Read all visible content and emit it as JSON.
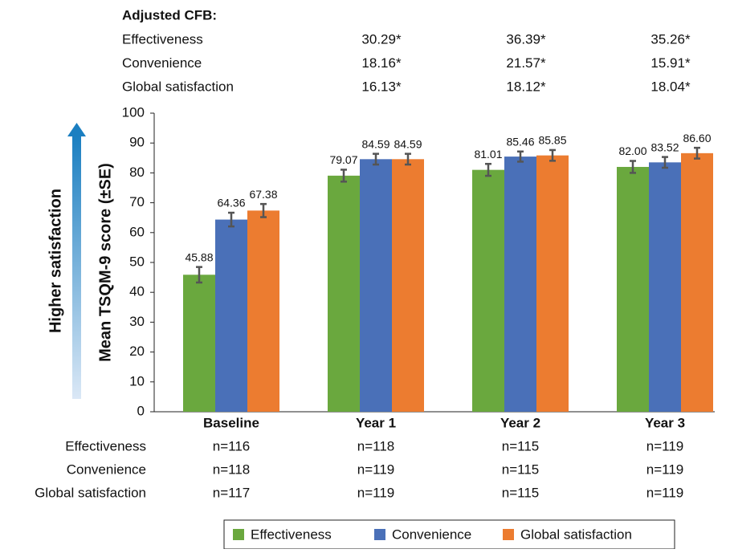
{
  "chart_data": {
    "type": "bar",
    "cfb": {
      "title": "Adjusted CFB:",
      "rows": [
        {
          "label": "Effectiveness",
          "values": [
            "30.29*",
            "36.39*",
            "35.26*"
          ]
        },
        {
          "label": "Convenience",
          "values": [
            "18.16*",
            "21.57*",
            "15.91*"
          ]
        },
        {
          "label": "Global satisfaction",
          "values": [
            "16.13*",
            "18.12*",
            "18.04*"
          ]
        }
      ]
    },
    "annotation": "Higher satisfaction",
    "y_label": "Mean TSQM-9 score (±SE)",
    "categories": [
      "Baseline",
      "Year 1",
      "Year 2",
      "Year 3"
    ],
    "series": [
      {
        "name": "Effectiveness",
        "color": "#6aa83e",
        "values": [
          45.88,
          79.07,
          81.01,
          82.0
        ],
        "value_labels": [
          "45.88",
          "79.07",
          "81.01",
          "82.00"
        ],
        "errors": [
          2.6,
          2.0,
          2.0,
          2.0
        ]
      },
      {
        "name": "Convenience",
        "color": "#4a70b8",
        "values": [
          64.36,
          84.59,
          85.46,
          83.52
        ],
        "value_labels": [
          "64.36",
          "84.59",
          "85.46",
          "83.52"
        ],
        "errors": [
          2.3,
          1.8,
          1.7,
          1.8
        ]
      },
      {
        "name": "Global satisfaction",
        "color": "#ec7c30",
        "values": [
          67.38,
          84.59,
          85.85,
          86.6
        ],
        "value_labels": [
          "67.38",
          "84.59",
          "85.85",
          "86.60"
        ],
        "errors": [
          2.2,
          1.8,
          1.8,
          1.8
        ]
      }
    ],
    "counts": {
      "rows": [
        {
          "label": "Effectiveness",
          "values": [
            "n=116",
            "n=118",
            "n=115",
            "n=119"
          ]
        },
        {
          "label": "Convenience",
          "values": [
            "n=118",
            "n=119",
            "n=115",
            "n=119"
          ]
        },
        {
          "label": "Global satisfaction",
          "values": [
            "n=117",
            "n=119",
            "n=115",
            "n=119"
          ]
        }
      ]
    },
    "ylim": [
      0,
      100
    ],
    "yticks": [
      0,
      10,
      20,
      30,
      40,
      50,
      60,
      70,
      80,
      90,
      100
    ]
  }
}
